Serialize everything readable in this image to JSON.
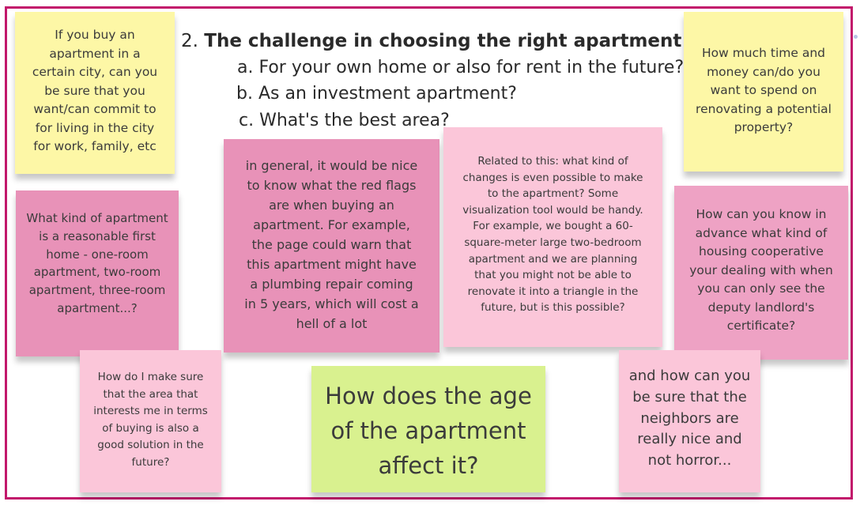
{
  "board": {
    "heading_number": "2.",
    "heading_title": "The challenge in choosing the right apartment",
    "sub_items": [
      "a. For your own home or also for rent in the future?",
      "b. As an investment apartment?",
      "c. What's the best area?"
    ]
  },
  "notes": {
    "city_commit": "If you buy an apartment in a certain city, can you be sure that you want/can commit to for living in the city for work, family, etc",
    "renovation_budget": "How much time and money can/do you want to spend on renovating a potential property?",
    "first_home": "What kind of apartment is a reasonable first home - one-room apartment, two-room apartment, three-room apartment...?",
    "red_flags": "in general, it would be nice to know what the red flags are when buying an apartment. For example, the page could warn that this apartment might have a plumbing repair coming in 5 years, which will cost a hell of a lot",
    "changes_possible": "Related to this: what kind of changes is even possible to make to the apartment? Some visualization tool would be handy. For example, we bought a 60-square-meter large two-bedroom apartment and we are planning that you might not be able to renovate it into a triangle in the future, but is this possible?",
    "housing_coop": "How can you know in advance what kind of housing cooperative your dealing with when you can only see the deputy landlord's certificate?",
    "area_future": "How do I make sure that the area that interests me in terms of buying is also a good solution in the future?",
    "apartment_age": "How does the age of the apartment affect it?",
    "neighbors": "and how can you be sure that the neighbors are really nice and not horror..."
  },
  "colors": {
    "frame": "#c2186b",
    "yellow": "#fdf7a6",
    "pink_dark": "#e892b8",
    "pink_mid": "#eea2c4",
    "pink_light": "#fbc6d9",
    "green": "#d9f18f"
  }
}
